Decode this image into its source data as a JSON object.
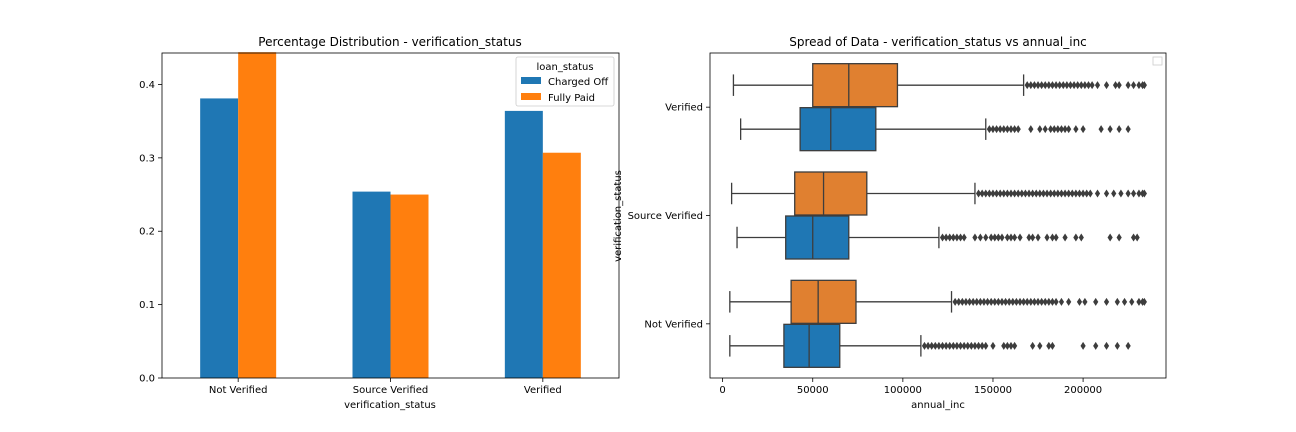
{
  "chart_data": [
    {
      "type": "bar",
      "title": "Percentage Distribution - verification_status",
      "xlabel": "verification_status",
      "ylabel": "",
      "categories": [
        "Not Verified",
        "Source Verified",
        "Verified"
      ],
      "series": [
        {
          "name": "Charged Off",
          "values": [
            0.381,
            0.254,
            0.364
          ],
          "color": "#1f77b4"
        },
        {
          "name": "Fully Paid",
          "values": [
            0.444,
            0.25,
            0.307
          ],
          "color": "#ff7f0e"
        }
      ],
      "ylim": [
        0,
        0.4429
      ],
      "yticks": [
        0.0,
        0.1,
        0.2,
        0.3,
        0.4
      ],
      "ytick_labels": [
        "0.0",
        "0.1",
        "0.2",
        "0.3",
        "0.4"
      ],
      "legend": {
        "title": "loan_status",
        "placement": "top-right"
      },
      "grid": false
    },
    {
      "type": "box",
      "title": "Spread of Data - verification_status vs annual_inc",
      "xlabel": "annual_inc",
      "ylabel": "verification_status",
      "categories": [
        "Verified",
        "Source Verified",
        "Not Verified"
      ],
      "xlim": [
        -7000,
        246000
      ],
      "xticks": [
        0,
        50000,
        100000,
        150000,
        200000
      ],
      "xtick_labels": [
        "0",
        "50000",
        "100000",
        "150000",
        "200000"
      ],
      "series": [
        {
          "color": "#1f77b4",
          "boxes": [
            {
              "category": "Verified",
              "whisker_low": 10000,
              "q1": 43000,
              "median": 60000,
              "q3": 85000,
              "whisker_high": 146000,
              "outliers": [
                148000,
                150000,
                152000,
                154000,
                156000,
                158000,
                160000,
                162000,
                164000,
                171000,
                176000,
                179000,
                182000,
                184000,
                186000,
                188000,
                190000,
                192000,
                196000,
                200000,
                210000,
                215000,
                220000,
                225000
              ]
            },
            {
              "category": "Source Verified",
              "whisker_low": 8000,
              "q1": 35000,
              "median": 50000,
              "q3": 70000,
              "whisker_high": 120000,
              "outliers": [
                122000,
                124000,
                126000,
                128000,
                130000,
                132000,
                134000,
                140000,
                143000,
                146000,
                149000,
                151000,
                153000,
                155000,
                158000,
                160000,
                162000,
                165000,
                170000,
                172000,
                175000,
                180000,
                183000,
                185000,
                190000,
                196000,
                199000,
                215000,
                220000,
                228000,
                230000
              ]
            },
            {
              "category": "Not Verified",
              "whisker_low": 4000,
              "q1": 34000,
              "median": 48000,
              "q3": 65000,
              "whisker_high": 110000,
              "outliers": [
                112000,
                114000,
                116000,
                118000,
                120000,
                122000,
                124000,
                126000,
                128000,
                130000,
                132000,
                134000,
                136000,
                138000,
                140000,
                142000,
                144000,
                146000,
                150000,
                156000,
                158000,
                160000,
                162000,
                172000,
                176000,
                181000,
                183000,
                200000,
                207000,
                213000,
                219000,
                225000
              ]
            }
          ]
        },
        {
          "color": "#e08030",
          "boxes": [
            {
              "category": "Verified",
              "whisker_low": 6000,
              "q1": 50000,
              "median": 70000,
              "q3": 97000,
              "whisker_high": 167000,
              "outliers": [
                169000,
                171000,
                173000,
                175000,
                177000,
                179000,
                181000,
                183000,
                185000,
                187000,
                189000,
                191000,
                193000,
                195000,
                197000,
                199000,
                201000,
                203000,
                205000,
                208000,
                213000,
                218000,
                220000,
                225000,
                228000,
                231000,
                233000,
                234000
              ]
            },
            {
              "category": "Source Verified",
              "whisker_low": 5000,
              "q1": 40000,
              "median": 56000,
              "q3": 80000,
              "whisker_high": 140000,
              "outliers": [
                142000,
                144000,
                146000,
                148000,
                150000,
                152000,
                154000,
                156000,
                158000,
                160000,
                162000,
                164000,
                166000,
                168000,
                170000,
                172000,
                174000,
                176000,
                178000,
                180000,
                182000,
                184000,
                186000,
                188000,
                190000,
                192000,
                194000,
                196000,
                198000,
                200000,
                202000,
                204000,
                208000,
                213000,
                217000,
                221000,
                225000,
                228000,
                231000,
                233000,
                234000
              ]
            },
            {
              "category": "Not Verified",
              "whisker_low": 4000,
              "q1": 38000,
              "median": 53000,
              "q3": 74000,
              "whisker_high": 127000,
              "outliers": [
                129000,
                131000,
                133000,
                135000,
                137000,
                139000,
                141000,
                143000,
                145000,
                147000,
                149000,
                151000,
                153000,
                155000,
                157000,
                159000,
                161000,
                163000,
                165000,
                167000,
                169000,
                171000,
                173000,
                175000,
                177000,
                179000,
                181000,
                183000,
                185000,
                188000,
                192000,
                198000,
                201000,
                207000,
                213000,
                219000,
                223000,
                227000,
                231000,
                233000,
                234000
              ]
            }
          ]
        }
      ],
      "legend": {
        "placement": "top-right",
        "entries": []
      },
      "grid": false
    }
  ]
}
